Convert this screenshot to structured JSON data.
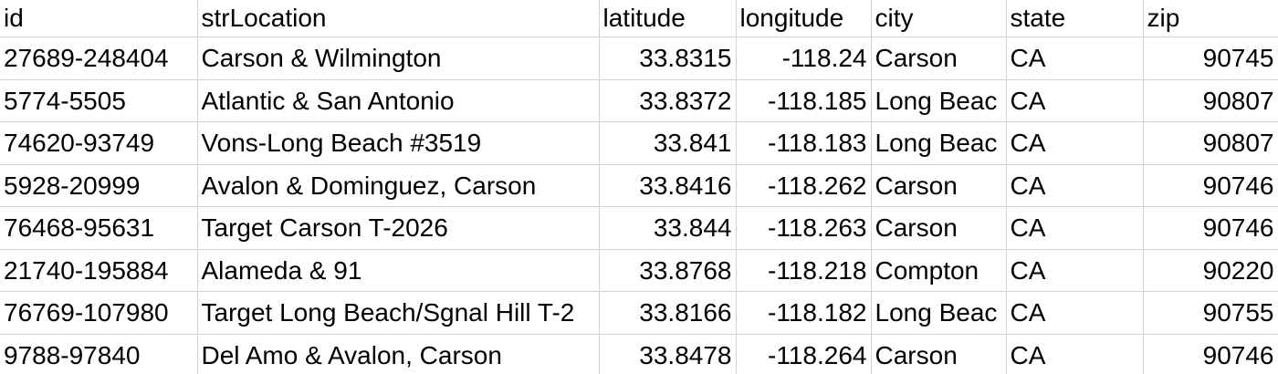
{
  "sheet": {
    "headers": [
      "id",
      "strLocation",
      "latitude",
      "longitude",
      "city",
      "state",
      "zip"
    ],
    "rows": [
      [
        "27689-248404",
        "Carson & Wilmington",
        "33.8315",
        "-118.24",
        "Carson",
        "CA",
        "90745"
      ],
      [
        "5774-5505",
        "Atlantic & San Antonio",
        "33.8372",
        "-118.185",
        "Long Beac",
        "CA",
        "90807"
      ],
      [
        "74620-93749",
        "Vons-Long Beach #3519",
        "33.841",
        "-118.183",
        "Long Beac",
        "CA",
        "90807"
      ],
      [
        "5928-20999",
        "Avalon & Dominguez, Carson",
        "33.8416",
        "-118.262",
        "Carson",
        "CA",
        "90746"
      ],
      [
        "76468-95631",
        "Target Carson T-2026",
        "33.844",
        "-118.263",
        "Carson",
        "CA",
        "90746"
      ],
      [
        "21740-195884",
        "Alameda & 91",
        "33.8768",
        "-118.218",
        "Compton",
        "CA",
        "90220"
      ],
      [
        "76769-107980",
        "Target Long Beach/Sgnal Hill T-2",
        "33.8166",
        "-118.182",
        "Long Beac",
        "CA",
        "90755"
      ],
      [
        "9788-97840",
        "Del Amo & Avalon, Carson",
        "33.8478",
        "-118.264",
        "Carson",
        "CA",
        "90746"
      ]
    ],
    "gridline_color": "#d4d4d4"
  }
}
